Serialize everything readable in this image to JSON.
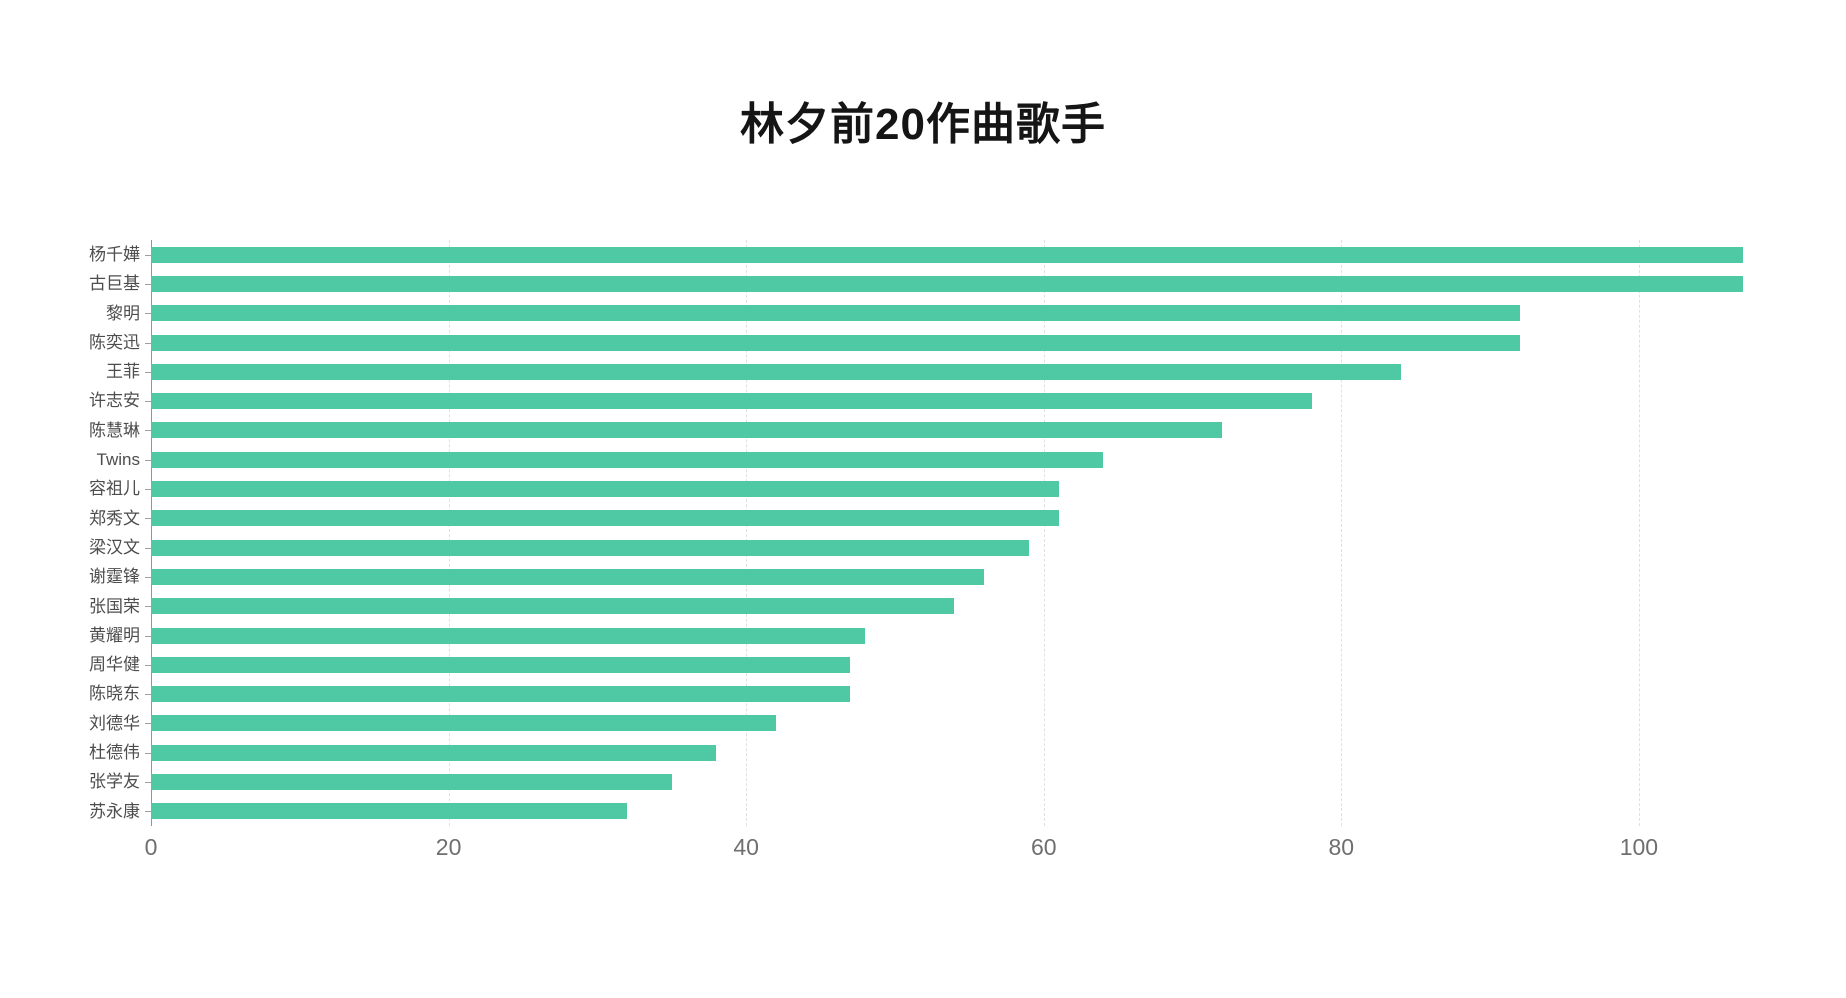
{
  "page": {
    "background_color": "#ffffff"
  },
  "chart_data": {
    "type": "bar",
    "orientation": "horizontal",
    "title": "林夕前20作曲歌手",
    "categories": [
      "杨千嬅",
      "古巨基",
      "黎明",
      "陈奕迅",
      "王菲",
      "许志安",
      "陈慧琳",
      "Twins",
      "容祖儿",
      "郑秀文",
      "梁汉文",
      "谢霆锋",
      "张国荣",
      "黄耀明",
      "周华健",
      "陈晓东",
      "刘德华",
      "杜德伟",
      "张学友",
      "苏永康"
    ],
    "values": [
      107,
      107,
      92,
      92,
      84,
      78,
      72,
      64,
      61,
      61,
      59,
      56,
      54,
      48,
      47,
      47,
      42,
      38,
      35,
      32
    ],
    "xlabel": "",
    "ylabel": "",
    "x_ticks": [
      0,
      20,
      40,
      60,
      80,
      100
    ],
    "xlim": [
      0,
      109.5
    ],
    "grid": "vertical-dashed",
    "legend": "none",
    "bar_color": "#4ec9a4",
    "gridline_color": "#e0e0e0",
    "axis_line_color": "#949494",
    "category_label_color": "#4d4d4d",
    "tick_label_color": "#6f6f6f",
    "title_color": "#151515"
  }
}
